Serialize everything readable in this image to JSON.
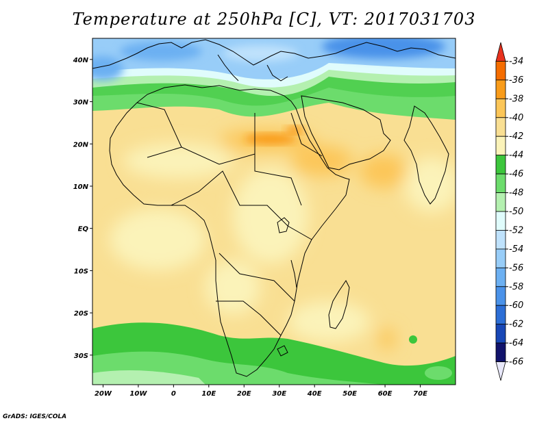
{
  "title": "Temperature at 250hPa [C], VT: 2017031703",
  "credit": "GrADS: IGES/COLA",
  "map": {
    "lon_range": [
      -23,
      80
    ],
    "lat_range": [
      -37,
      45
    ],
    "lat_labels": [
      "40N",
      "30N",
      "20N",
      "10N",
      "EQ",
      "10S",
      "20S",
      "30S"
    ],
    "lat_values": [
      40,
      30,
      20,
      10,
      0,
      -10,
      -20,
      -30
    ],
    "lon_labels": [
      "20W",
      "10W",
      "0",
      "10E",
      "20E",
      "30E",
      "40E",
      "50E",
      "60E",
      "70E"
    ],
    "lon_values": [
      -20,
      -10,
      0,
      10,
      20,
      30,
      40,
      50,
      60,
      70
    ]
  },
  "colorbar": {
    "labels": [
      "-34",
      "-36",
      "-38",
      "-40",
      "-42",
      "-44",
      "-46",
      "-48",
      "-50",
      "-52",
      "-54",
      "-56",
      "-58",
      "-60",
      "-62",
      "-64",
      "-66"
    ],
    "colors": [
      "#e8321e",
      "#f56d00",
      "#f99c1a",
      "#fcc658",
      "#f9df93",
      "#fbf3b9",
      "#3cc63c",
      "#6cdc6c",
      "#b4f0b0",
      "#e0fcfc",
      "#bfe2fc",
      "#98cdf8",
      "#6cb0f2",
      "#4a92e9",
      "#2c6ed6",
      "#1847b6",
      "#11136b",
      "#e8e8fa"
    ]
  }
}
